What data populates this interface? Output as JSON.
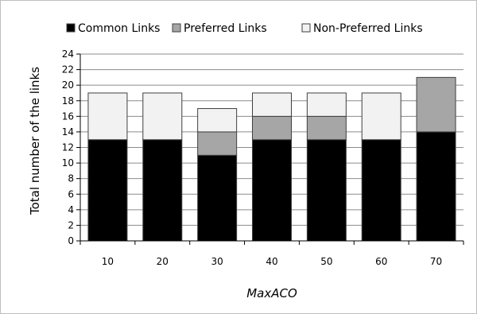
{
  "chart_data": {
    "type": "bar",
    "stacked": true,
    "xlabel": "MaxACO",
    "ylabel": "Total number of the links",
    "ylim": [
      0,
      24
    ],
    "ytick_step": 2,
    "grid": true,
    "legend_position": "top",
    "categories": [
      "10",
      "20",
      "30",
      "40",
      "50",
      "60",
      "70"
    ],
    "series": [
      {
        "name": "Common Links",
        "color": "#000000",
        "values": [
          13,
          13,
          11,
          13,
          13,
          13,
          14
        ]
      },
      {
        "name": "Preferred Links",
        "color": "#a6a6a6",
        "values": [
          0,
          0,
          3,
          3,
          3,
          0,
          7
        ]
      },
      {
        "name": "Non-Preferred Links",
        "color": "#f2f2f2",
        "values": [
          6,
          6,
          3,
          3,
          3,
          6,
          0
        ]
      }
    ]
  }
}
